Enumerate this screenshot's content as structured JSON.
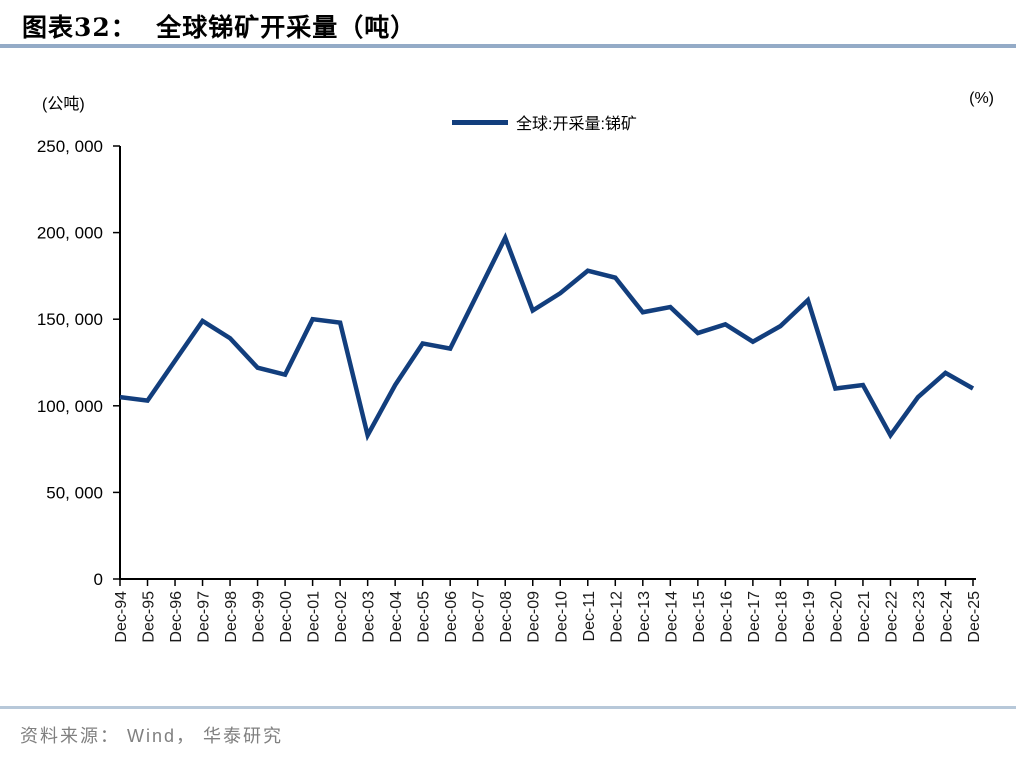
{
  "header": {
    "title": "图表32：  全球锑矿开采量（吨）"
  },
  "chart": {
    "unit_left": "(公吨)",
    "unit_right": "(%)",
    "legend_label": "全球:开采量:锑矿",
    "line_color": "#123e7d"
  },
  "chart_data": {
    "type": "line",
    "title": "全球锑矿开采量（吨）",
    "xlabel": "",
    "ylabel": "公吨",
    "ylim": [
      0,
      250000
    ],
    "yticks": [
      0,
      50000,
      100000,
      150000,
      200000,
      250000
    ],
    "ytick_labels": [
      "0",
      "50, 000",
      "100, 000",
      "150, 000",
      "200, 000",
      "250, 000"
    ],
    "grid": false,
    "legend_position": "top-center",
    "x": [
      "Dec-94",
      "Dec-95",
      "Dec-96",
      "Dec-97",
      "Dec-98",
      "Dec-99",
      "Dec-00",
      "Dec-01",
      "Dec-02",
      "Dec-03",
      "Dec-04",
      "Dec-05",
      "Dec-06",
      "Dec-07",
      "Dec-08",
      "Dec-09",
      "Dec-10",
      "Dec-11",
      "Dec-12",
      "Dec-13",
      "Dec-14",
      "Dec-15",
      "Dec-16",
      "Dec-17",
      "Dec-18",
      "Dec-19",
      "Dec-20",
      "Dec-21",
      "Dec-22",
      "Dec-23",
      "Dec-24",
      "Dec-25"
    ],
    "series": [
      {
        "name": "全球:开采量:锑矿",
        "color": "#123e7d",
        "values": [
          105000,
          103000,
          126000,
          149000,
          139000,
          122000,
          118000,
          150000,
          148000,
          83000,
          112000,
          136000,
          133000,
          165000,
          197000,
          155000,
          165000,
          178000,
          174000,
          154000,
          157000,
          142000,
          147000,
          137000,
          146000,
          161000,
          110000,
          112000,
          83000,
          105000,
          119000,
          110000
        ]
      }
    ]
  },
  "footer": {
    "source": "资料来源： Wind， 华泰研究"
  }
}
